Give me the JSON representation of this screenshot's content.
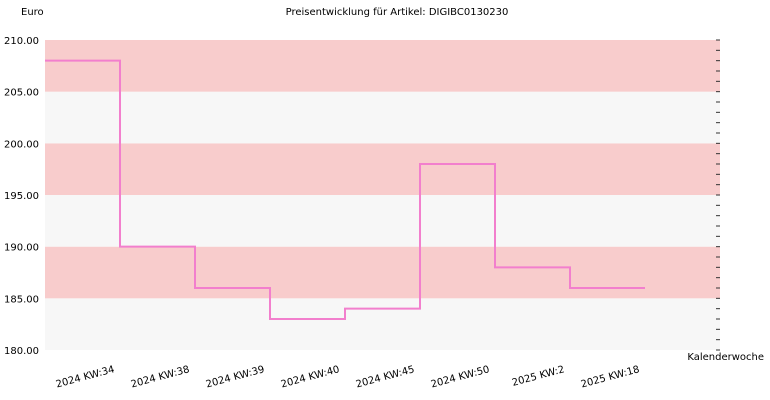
{
  "chart_data": {
    "type": "line",
    "step": true,
    "title": "Preisentwicklung für Artikel: DIGIBC0130230",
    "ylabel": "Euro",
    "xlabel": "Kalenderwoche",
    "ylim": [
      180,
      210
    ],
    "yticks": [
      "180.00",
      "185.00",
      "190.00",
      "195.00",
      "200.00",
      "205.00",
      "210.00"
    ],
    "categories": [
      "2024 KW:34",
      "2024 KW:38",
      "2024 KW:39",
      "2024 KW:40",
      "2024 KW:45",
      "2024 KW:50",
      "2025 KW:2",
      "2025 KW:18"
    ],
    "series": [
      {
        "values": [
          208,
          190,
          186,
          183,
          184,
          198,
          188,
          186
        ]
      }
    ],
    "grid": true,
    "band_colors": [
      "#f7f7f7",
      "#f8cccc"
    ],
    "line_color": "#f27fcd"
  }
}
